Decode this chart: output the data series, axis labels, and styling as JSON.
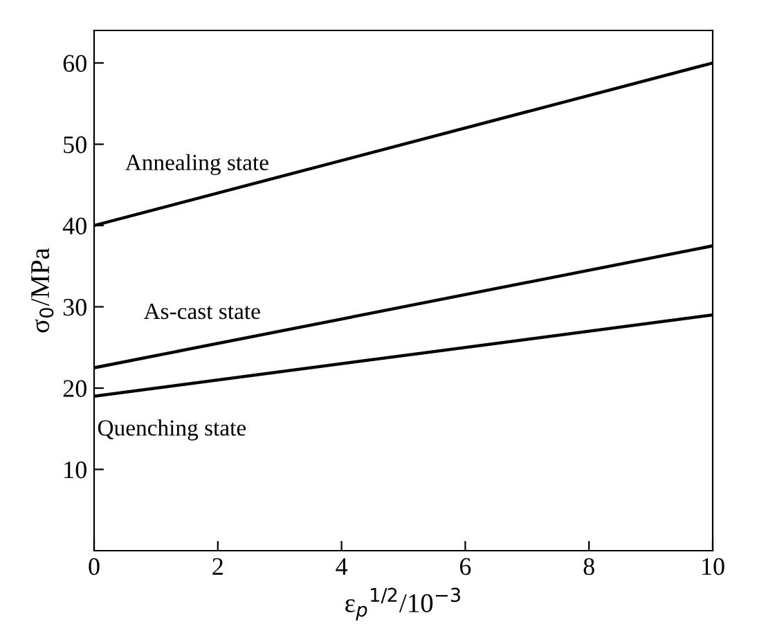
{
  "chart_data": {
    "type": "line",
    "xlabel": "ε$_{p}$$^{1/2}$/10$^{−3}$",
    "ylabel": "σ$_{0}$/MPa",
    "x": [
      0,
      10
    ],
    "series": [
      {
        "name": "Annealing state",
        "color": "#000000",
        "values": [
          40,
          60
        ]
      },
      {
        "name": "As-cast state",
        "color": "#000000",
        "values": [
          22.5,
          37.5
        ]
      },
      {
        "name": "Quenching state",
        "color": "#000000",
        "values": [
          19,
          29
        ]
      }
    ],
    "xlim": [
      0,
      10
    ],
    "ylim": [
      0,
      64
    ],
    "xticks": [
      0,
      2,
      4,
      6,
      8,
      10
    ],
    "yticks": [
      10,
      20,
      30,
      40,
      50,
      60
    ],
    "grid": false,
    "legend": false,
    "marker": "none",
    "line_style": "solid"
  }
}
